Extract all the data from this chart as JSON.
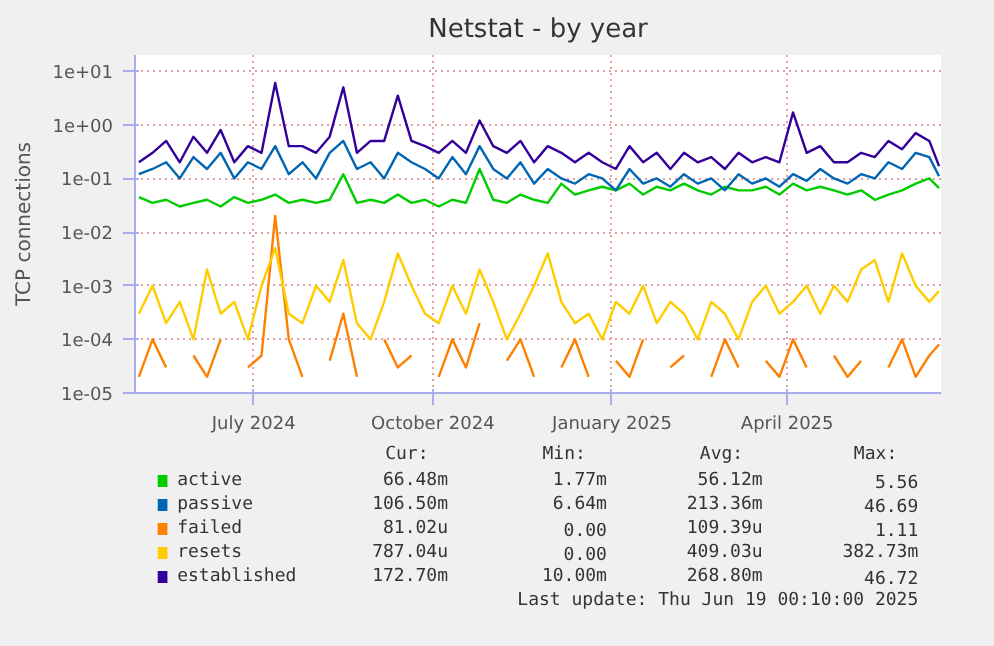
{
  "chart_data": {
    "type": "line",
    "title": "Netstat - by year",
    "ylabel": "TCP connections",
    "log": "y",
    "grid": true,
    "legend": "bottom",
    "marker": "none",
    "line_style": "solid",
    "xlim": [
      "2024-05-01",
      "2025-06-19"
    ],
    "xticks": [
      {
        "value": "2024-07-01",
        "label": "July 2024"
      },
      {
        "value": "2024-10-01",
        "label": "October 2024"
      },
      {
        "value": "2025-01-01",
        "label": "January 2025"
      },
      {
        "value": "2025-04-01",
        "label": "April 2025"
      }
    ],
    "ylim": [
      1e-05,
      20
    ],
    "yticks": [
      {
        "value": 1e-05,
        "label": "1e-05"
      },
      {
        "value": 0.0001,
        "label": "1e-04"
      },
      {
        "value": 0.001,
        "label": "1e-03"
      },
      {
        "value": 0.01,
        "label": "1e-02"
      },
      {
        "value": 0.1,
        "label": "1e-01"
      },
      {
        "value": 1,
        "label": "1e+00"
      },
      {
        "value": 10,
        "label": "1e+01"
      }
    ],
    "x": [
      "2024-05-03",
      "2024-05-10",
      "2024-05-17",
      "2024-05-24",
      "2024-05-31",
      "2024-06-07",
      "2024-06-14",
      "2024-06-21",
      "2024-06-28",
      "2024-07-05",
      "2024-07-12",
      "2024-07-19",
      "2024-07-26",
      "2024-08-02",
      "2024-08-09",
      "2024-08-16",
      "2024-08-23",
      "2024-08-30",
      "2024-09-06",
      "2024-09-13",
      "2024-09-20",
      "2024-09-27",
      "2024-10-04",
      "2024-10-11",
      "2024-10-18",
      "2024-10-25",
      "2024-11-01",
      "2024-11-08",
      "2024-11-15",
      "2024-11-22",
      "2024-11-29",
      "2024-12-06",
      "2024-12-13",
      "2024-12-20",
      "2024-12-27",
      "2025-01-03",
      "2025-01-10",
      "2025-01-17",
      "2025-01-24",
      "2025-01-31",
      "2025-02-07",
      "2025-02-14",
      "2025-02-21",
      "2025-02-28",
      "2025-03-07",
      "2025-03-14",
      "2025-03-21",
      "2025-03-28",
      "2025-04-04",
      "2025-04-11",
      "2025-04-18",
      "2025-04-25",
      "2025-05-02",
      "2025-05-09",
      "2025-05-16",
      "2025-05-23",
      "2025-05-30",
      "2025-06-06",
      "2025-06-13",
      "2025-06-18"
    ],
    "series": [
      {
        "name": "active",
        "color": "#00cc00",
        "values": [
          0.045,
          0.035,
          0.04,
          0.03,
          0.035,
          0.04,
          0.03,
          0.045,
          0.035,
          0.04,
          0.05,
          0.035,
          0.04,
          0.035,
          0.04,
          0.12,
          0.035,
          0.04,
          0.035,
          0.05,
          0.035,
          0.04,
          0.03,
          0.04,
          0.035,
          0.15,
          0.04,
          0.035,
          0.05,
          0.04,
          0.035,
          0.08,
          0.05,
          0.06,
          0.07,
          0.06,
          0.08,
          0.05,
          0.07,
          0.06,
          0.08,
          0.06,
          0.05,
          0.07,
          0.06,
          0.06,
          0.07,
          0.05,
          0.08,
          0.06,
          0.07,
          0.06,
          0.05,
          0.06,
          0.04,
          0.05,
          0.06,
          0.08,
          0.1,
          0.066
        ]
      },
      {
        "name": "passive",
        "color": "#0066b3",
        "values": [
          0.12,
          0.15,
          0.2,
          0.1,
          0.25,
          0.15,
          0.3,
          0.1,
          0.2,
          0.15,
          0.4,
          0.12,
          0.2,
          0.1,
          0.3,
          0.5,
          0.15,
          0.2,
          0.1,
          0.3,
          0.2,
          0.15,
          0.1,
          0.25,
          0.12,
          0.4,
          0.15,
          0.1,
          0.2,
          0.08,
          0.15,
          0.1,
          0.08,
          0.12,
          0.1,
          0.06,
          0.15,
          0.08,
          0.1,
          0.07,
          0.12,
          0.08,
          0.1,
          0.06,
          0.12,
          0.08,
          0.1,
          0.07,
          0.12,
          0.09,
          0.15,
          0.1,
          0.08,
          0.12,
          0.1,
          0.2,
          0.15,
          0.3,
          0.25,
          0.11
        ]
      },
      {
        "name": "failed",
        "color": "#ff8000",
        "values": [
          2e-05,
          0.0001,
          3e-05,
          null,
          5e-05,
          2e-05,
          0.0001,
          null,
          3e-05,
          5e-05,
          0.02,
          0.0001,
          2e-05,
          null,
          4e-05,
          0.0003,
          2e-05,
          null,
          0.0001,
          3e-05,
          5e-05,
          null,
          2e-05,
          0.0001,
          3e-05,
          0.0002,
          null,
          4e-05,
          0.0001,
          2e-05,
          null,
          3e-05,
          0.0001,
          2e-05,
          null,
          4e-05,
          2e-05,
          0.0001,
          null,
          3e-05,
          5e-05,
          null,
          2e-05,
          0.0001,
          3e-05,
          null,
          4e-05,
          2e-05,
          0.0001,
          3e-05,
          null,
          5e-05,
          2e-05,
          4e-05,
          null,
          3e-05,
          0.0001,
          2e-05,
          5e-05,
          8e-05
        ]
      },
      {
        "name": "resets",
        "color": "#ffcc00",
        "values": [
          0.0003,
          0.001,
          0.0002,
          0.0005,
          0.0001,
          0.002,
          0.0003,
          0.0005,
          0.0001,
          0.001,
          0.005,
          0.0003,
          0.0002,
          0.001,
          0.0005,
          0.003,
          0.0002,
          0.0001,
          0.0005,
          0.004,
          0.001,
          0.0003,
          0.0002,
          0.001,
          0.0003,
          0.002,
          0.0005,
          0.0001,
          0.0003,
          0.001,
          0.004,
          0.0005,
          0.0002,
          0.0003,
          0.0001,
          0.0005,
          0.0003,
          0.001,
          0.0002,
          0.0005,
          0.0003,
          0.0001,
          0.0005,
          0.0003,
          0.0001,
          0.0005,
          0.001,
          0.0003,
          0.0005,
          0.001,
          0.0003,
          0.001,
          0.0005,
          0.002,
          0.003,
          0.0005,
          0.004,
          0.001,
          0.0005,
          0.0008
        ]
      },
      {
        "name": "established",
        "color": "#330099",
        "values": [
          0.2,
          0.3,
          0.5,
          0.2,
          0.6,
          0.3,
          0.8,
          0.2,
          0.4,
          0.3,
          6.0,
          0.4,
          0.4,
          0.3,
          0.6,
          5.0,
          0.3,
          0.5,
          0.5,
          3.5,
          0.5,
          0.4,
          0.3,
          0.5,
          0.3,
          1.2,
          0.4,
          0.3,
          0.5,
          0.2,
          0.4,
          0.3,
          0.2,
          0.3,
          0.2,
          0.15,
          0.4,
          0.2,
          0.3,
          0.15,
          0.3,
          0.2,
          0.25,
          0.15,
          0.3,
          0.2,
          0.25,
          0.2,
          1.7,
          0.3,
          0.4,
          0.2,
          0.2,
          0.3,
          0.25,
          0.5,
          0.35,
          0.7,
          0.5,
          0.17
        ]
      }
    ],
    "annotations": [
      "Cur:",
      "Min:",
      "Avg:",
      "Max:",
      "66.48m",
      "1.77m",
      "56.12m",
      "5.56",
      "106.50m",
      "6.64m",
      "213.36m",
      "46.69",
      "81.02u",
      "0.00",
      "109.39u",
      "1.11",
      "787.04u",
      "0.00",
      "409.03u",
      "382.73m",
      "172.70m",
      "10.00m",
      "268.80m",
      "46.72",
      "Last update: Thu Jun 19 00:10:00 2025"
    ]
  }
}
